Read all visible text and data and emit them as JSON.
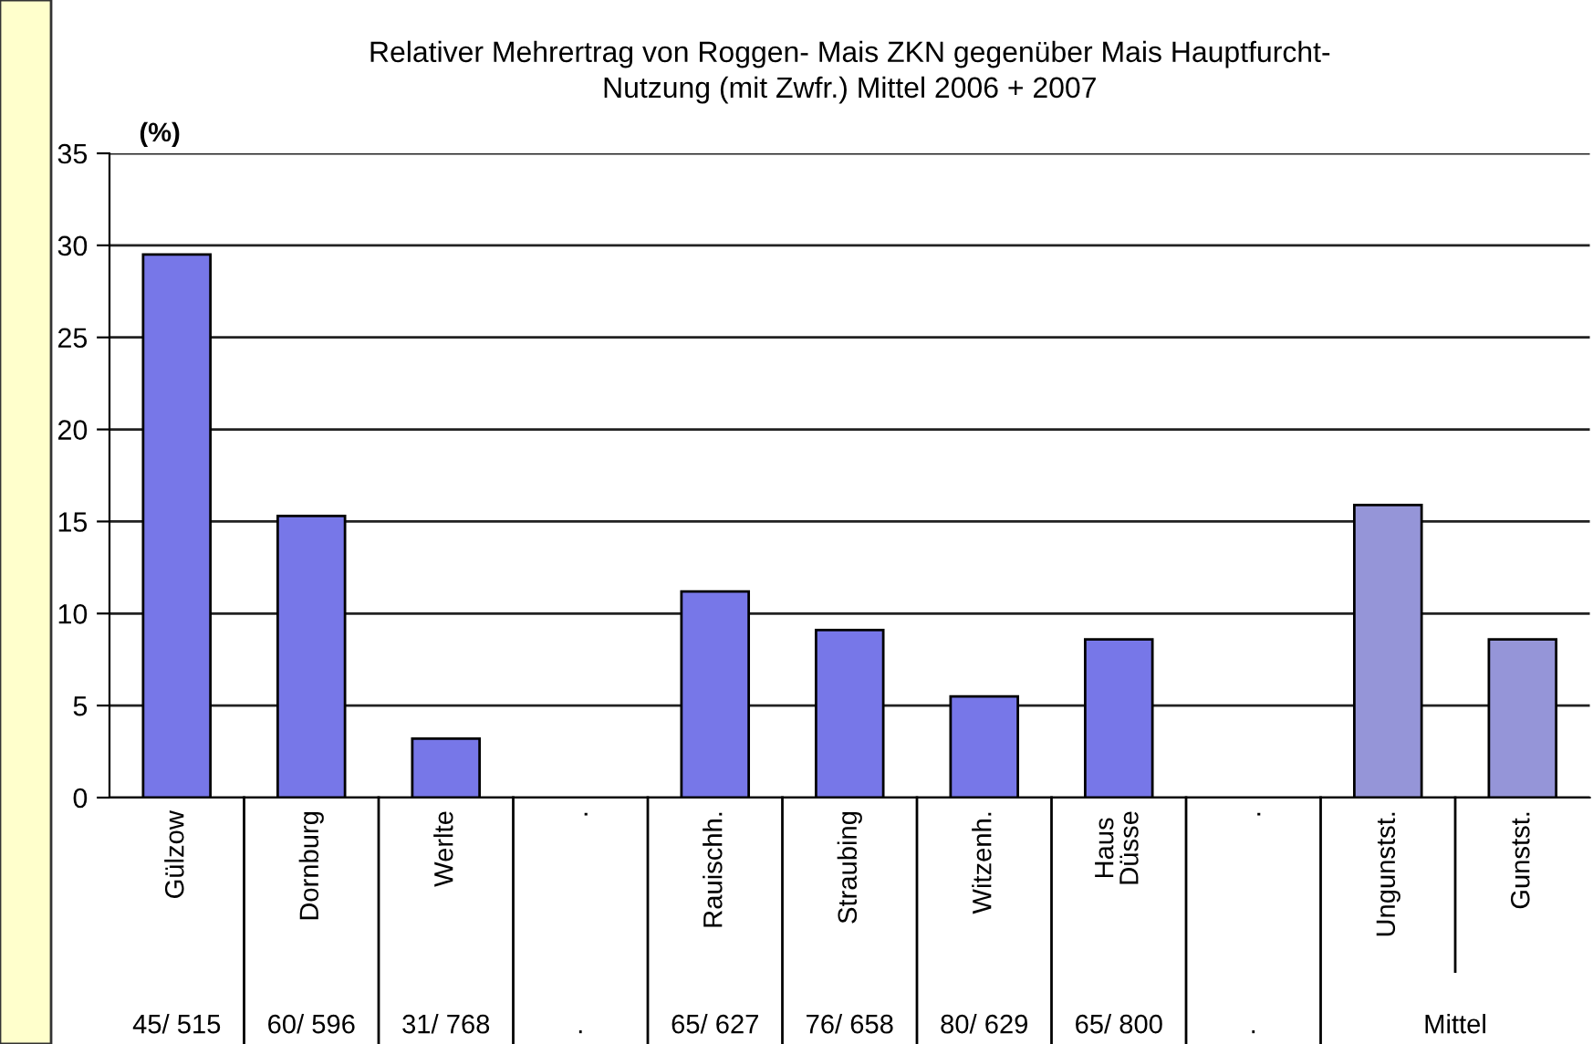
{
  "chart_data": {
    "type": "bar",
    "title": "Relativer Mehrertrag von Roggen- Mais ZKN gegenüber Mais Hauptfurcht-\nNutzung (mit Zwfr.) Mittel 2006 + 2007",
    "ylabel": "(%)",
    "categories": [
      "Gülzow",
      "Dornburg",
      "Werlte",
      ".",
      "Rauischh.",
      "Straubing",
      "Witzenh.",
      "Haus\nDüsse",
      ".",
      "Ungunstst.",
      "Gunstst."
    ],
    "values": [
      29.5,
      15.3,
      3.2,
      null,
      11.2,
      9.1,
      5.5,
      8.6,
      null,
      15.9,
      8.6
    ],
    "colors": [
      "#7777e8",
      "#7777e8",
      "#7777e8",
      "#7777e8",
      "#7777e8",
      "#7777e8",
      "#7777e8",
      "#7777e8",
      "#7777e8",
      "#9595d8",
      "#9595d8"
    ],
    "annotations": [
      "45/ 515",
      "60/ 596",
      "31/ 768",
      ".",
      "65/ 627",
      "76/ 658",
      "80/ 629",
      "65/ 800",
      ".",
      "Mittel"
    ],
    "ylim": [
      0,
      35
    ],
    "yticks": [
      0,
      5,
      10,
      15,
      20,
      25,
      30,
      35
    ],
    "grid": "y"
  }
}
